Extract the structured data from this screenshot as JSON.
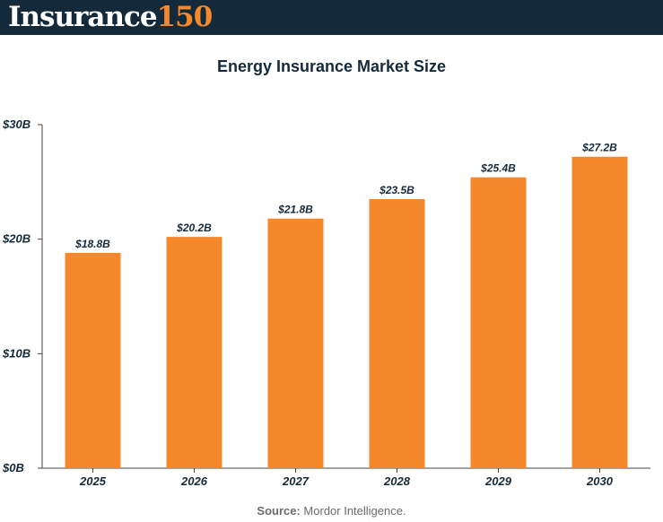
{
  "brand": {
    "word": "Insurance",
    "number": "150",
    "primary_color": "#142a3a",
    "accent_color": "#f5882a"
  },
  "source": {
    "label": "Source:",
    "text": " Mordor Intelligence."
  },
  "chart_data": {
    "type": "bar",
    "title": "Energy Insurance Market Size",
    "xlabel": "",
    "ylabel": "",
    "categories": [
      "2025",
      "2026",
      "2027",
      "2028",
      "2029",
      "2030"
    ],
    "values": [
      18.8,
      20.2,
      21.8,
      23.5,
      25.4,
      27.2
    ],
    "data_labels": [
      "$18.8B",
      "$20.2B",
      "$21.8B",
      "$23.5B",
      "$25.4B",
      "$27.2B"
    ],
    "ylim": [
      0,
      30
    ],
    "yticks": [
      0,
      10,
      20,
      30
    ],
    "ytick_labels": [
      "$0B",
      "$10B",
      "$20B",
      "$30B"
    ],
    "bar_color": "#f5882a",
    "grid": false,
    "legend": "none"
  }
}
